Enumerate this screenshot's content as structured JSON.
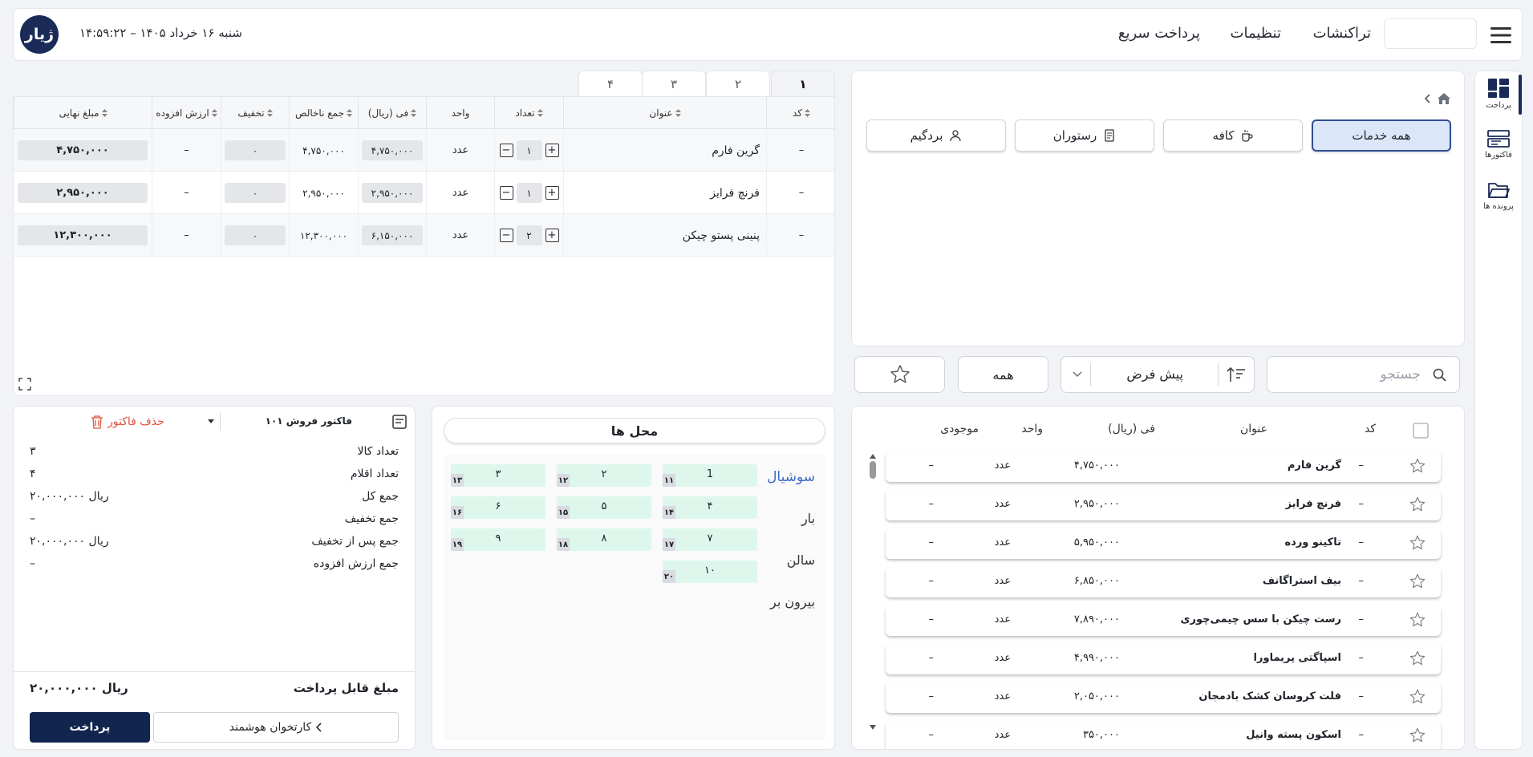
{
  "header": {
    "logo_text": "ژیار",
    "datetime": "شنبه ۱۶ خرداد ۱۴۰۵  –  ۱۴:۵۹:۲۲",
    "nav": [
      "تراکنشات",
      "تنظیمات",
      "پرداخت سریع"
    ]
  },
  "sidebar": {
    "items": [
      {
        "label": "پرداخت",
        "icon": "dashboard-icon"
      },
      {
        "label": "فاکتورها",
        "icon": "invoices-icon"
      },
      {
        "label": "پرونده ها",
        "icon": "folder-icon"
      }
    ]
  },
  "categories": [
    "همه خدمات",
    "کافه",
    "رستوران",
    "بردگیم"
  ],
  "search": {
    "placeholder": "جستجو"
  },
  "sort": {
    "value": "پیش فرض"
  },
  "filter": {
    "all_label": "همه"
  },
  "products": {
    "headers": {
      "code": "کد",
      "title": "عنوان",
      "price": "فی (ریال)",
      "unit": "واحد",
      "stock": "موجودی"
    },
    "rows": [
      {
        "code": "–",
        "title": "گرین فارم",
        "price": "۴,۷۵۰,۰۰۰",
        "unit": "عدد",
        "stock": "–"
      },
      {
        "code": "–",
        "title": "فرنچ فرایز",
        "price": "۲,۹۵۰,۰۰۰",
        "unit": "عدد",
        "stock": "–"
      },
      {
        "code": "–",
        "title": "تاکینو ورده",
        "price": "۵,۹۵۰,۰۰۰",
        "unit": "عدد",
        "stock": "–"
      },
      {
        "code": "–",
        "title": "بیف استراگانف",
        "price": "۶,۸۵۰,۰۰۰",
        "unit": "عدد",
        "stock": "–"
      },
      {
        "code": "–",
        "title": "رست چیکن با سس چیمی‌چوری",
        "price": "۷,۸۹۰,۰۰۰",
        "unit": "عدد",
        "stock": "–"
      },
      {
        "code": "–",
        "title": "اسپاگتی پریماورا",
        "price": "۴,۹۹۰,۰۰۰",
        "unit": "عدد",
        "stock": "–"
      },
      {
        "code": "–",
        "title": "فلت کروسان کشک بادمجان",
        "price": "۲,۰۵۰,۰۰۰",
        "unit": "عدد",
        "stock": "–"
      },
      {
        "code": "–",
        "title": "اسکون پسته وانیل",
        "price": "۳۵۰,۰۰۰",
        "unit": "عدد",
        "stock": "–"
      }
    ]
  },
  "invoice_tabs": [
    "۱",
    "۲",
    "۳",
    "۴"
  ],
  "invoice": {
    "headers": {
      "code": "کد",
      "title": "عنوان",
      "qty": "تعداد",
      "unit": "واحد",
      "price": "فی (ریال)",
      "gross": "جمع ناخالص",
      "discount": "تخفیف",
      "vat": "ارزش افزوده",
      "final": "مبلغ نهایی"
    },
    "rows": [
      {
        "code": "–",
        "title": "گرین فارم",
        "qty": "۱",
        "unit": "عدد",
        "price": "۴,۷۵۰,۰۰۰",
        "gross": "۴,۷۵۰,۰۰۰",
        "discount": "۰",
        "vat": "–",
        "final": "۴,۷۵۰,۰۰۰"
      },
      {
        "code": "–",
        "title": "فرنچ فرایز",
        "qty": "۱",
        "unit": "عدد",
        "price": "۲,۹۵۰,۰۰۰",
        "gross": "۲,۹۵۰,۰۰۰",
        "discount": "۰",
        "vat": "–",
        "final": "۲,۹۵۰,۰۰۰"
      },
      {
        "code": "–",
        "title": "پنینی پستو چیکن",
        "qty": "۲",
        "unit": "عدد",
        "price": "۶,۱۵۰,۰۰۰",
        "gross": "۱۲,۳۰۰,۰۰۰",
        "discount": "۰",
        "vat": "–",
        "final": "۱۲,۳۰۰,۰۰۰"
      }
    ]
  },
  "places": {
    "title": "محل ها",
    "zones": [
      "سوشیال",
      "بار",
      "سالن",
      "بیرون بر"
    ],
    "tiles": [
      {
        "n": "1",
        "b": "۱۱"
      },
      {
        "n": "۲",
        "b": "۱۲"
      },
      {
        "n": "۳",
        "b": "۱۳"
      },
      {
        "n": "۴",
        "b": "۱۴"
      },
      {
        "n": "۵",
        "b": "۱۵"
      },
      {
        "n": "۶",
        "b": "۱۶"
      },
      {
        "n": "۷",
        "b": "۱۷"
      },
      {
        "n": "۸",
        "b": "۱۸"
      },
      {
        "n": "۹",
        "b": "۱۹"
      },
      {
        "n": "۱۰",
        "b": "۲۰"
      }
    ]
  },
  "summary": {
    "invoice_type": "فاکتور فروش ۱۰۱",
    "delete_label": "حذف فاکتور",
    "rows": [
      {
        "k": "تعداد کالا",
        "v": "۳"
      },
      {
        "k": "تعداد اقلام",
        "v": "۴"
      },
      {
        "k": "جمع کل",
        "v": "۲۰,۰۰۰,۰۰۰ ریال"
      },
      {
        "k": "جمع تخفیف",
        "v": "–"
      },
      {
        "k": "جمع پس از تخفیف",
        "v": "۲۰,۰۰۰,۰۰۰ ریال"
      },
      {
        "k": "جمع ارزش افزوده",
        "v": "–"
      }
    ],
    "payable_label": "مبلغ قابل پرداخت",
    "payable_value": "۲۰,۰۰۰,۰۰۰ ریال",
    "pay_label": "پرداخت",
    "smart_reader_label": "کارتخوان هوشمند"
  },
  "colors": {
    "primary": "#1b2b57",
    "accent_blue": "#3b6bc6",
    "tile_green": "#ddf7ec",
    "danger": "#e0533d"
  }
}
